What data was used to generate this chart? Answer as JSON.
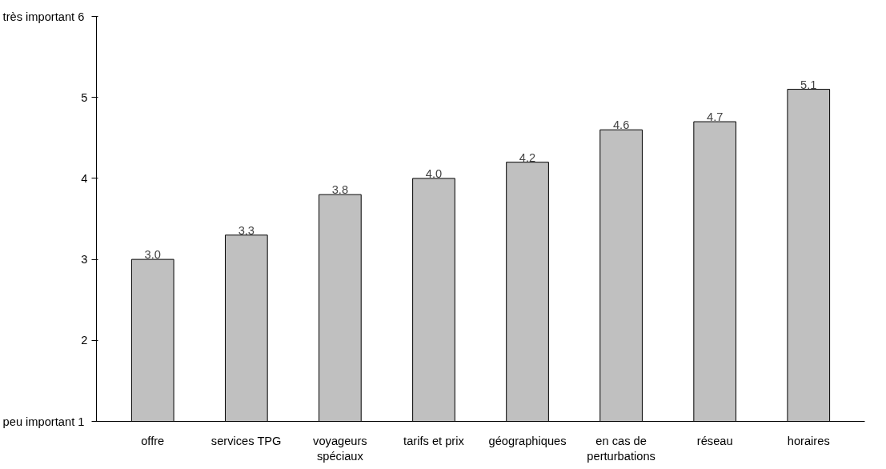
{
  "chart_data": {
    "type": "bar",
    "categories": [
      "offre",
      "services TPG",
      "voyageurs\nspéciaux",
      "tarifs et prix",
      "géographiques",
      "en cas de\nperturbations",
      "réseau",
      "horaires"
    ],
    "values": [
      3.0,
      3.3,
      3.8,
      4.0,
      4.2,
      4.6,
      4.7,
      5.1
    ],
    "color": "#c0c0c0",
    "ylim": [
      1,
      6
    ],
    "yticks": [
      {
        "value": 1,
        "label": "peu important  1"
      },
      2,
      3,
      4,
      5,
      {
        "value": 6,
        "label": "très important  6"
      }
    ],
    "value_labels": [
      "3.0",
      "3.3",
      "3.8",
      "4.0",
      "4.2",
      "4.6",
      "4.7",
      "5.1"
    ]
  }
}
